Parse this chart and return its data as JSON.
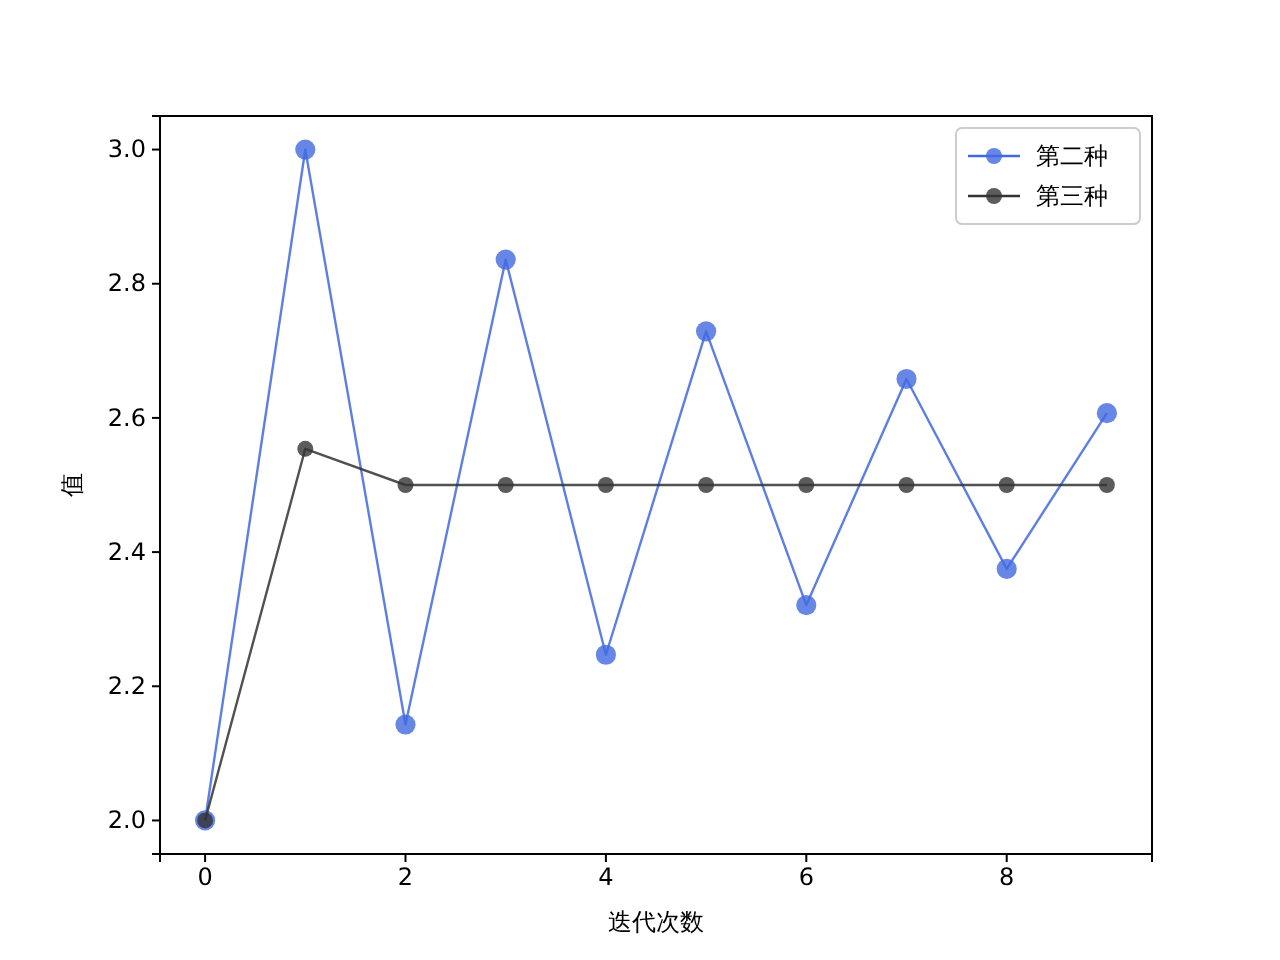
{
  "chart_data": {
    "type": "line",
    "xlabel": "迭代次数",
    "ylabel": "值",
    "x": [
      0,
      1,
      2,
      3,
      4,
      5,
      6,
      7,
      8,
      9
    ],
    "series": [
      {
        "name": "第二种",
        "color": "#4169e1",
        "values": [
          2.0,
          3.0,
          2.143,
          2.836,
          2.247,
          2.729,
          2.321,
          2.658,
          2.375,
          2.607
        ]
      },
      {
        "name": "第三种",
        "color": "#333333",
        "values": [
          2.0,
          2.554,
          2.5,
          2.5,
          2.5,
          2.5,
          2.5,
          2.5,
          2.5,
          2.5
        ]
      }
    ],
    "xlim": [
      -0.45,
      9.45
    ],
    "xticks": [
      0,
      2,
      4,
      6,
      8
    ],
    "ylim": [
      1.95,
      3.05
    ],
    "yticks": [
      {
        "value": 2.0,
        "label": "2.0"
      },
      {
        "value": 2.2,
        "label": "2.2"
      },
      {
        "value": 2.4,
        "label": "2.4"
      },
      {
        "value": 2.6,
        "label": "2.6"
      },
      {
        "value": 2.8,
        "label": "2.8"
      },
      {
        "value": 3.0,
        "label": "3.0"
      }
    ],
    "marker": "circle",
    "line_style": "solid",
    "legend": "top right",
    "grid": false
  }
}
